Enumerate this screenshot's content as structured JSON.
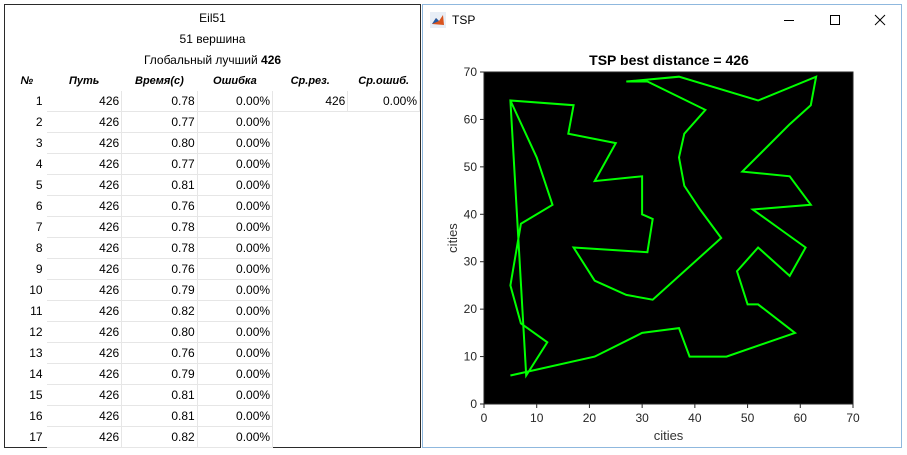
{
  "header": {
    "instance": "Eil51",
    "vertices": "51 вершина",
    "global_best_label": "Глобальный лучший",
    "global_best_value": "426"
  },
  "table": {
    "columns": [
      "№",
      "Путь",
      "Время(с)",
      "Ошибка",
      "Ср.рез.",
      "Ср.ошиб."
    ],
    "rows": [
      {
        "n": "1",
        "path": "426",
        "time": "0.78",
        "err": "0.00%",
        "avg": "426",
        "avgerr": "0.00%"
      },
      {
        "n": "2",
        "path": "426",
        "time": "0.77",
        "err": "0.00%"
      },
      {
        "n": "3",
        "path": "426",
        "time": "0.80",
        "err": "0.00%"
      },
      {
        "n": "4",
        "path": "426",
        "time": "0.77",
        "err": "0.00%"
      },
      {
        "n": "5",
        "path": "426",
        "time": "0.81",
        "err": "0.00%"
      },
      {
        "n": "6",
        "path": "426",
        "time": "0.76",
        "err": "0.00%"
      },
      {
        "n": "7",
        "path": "426",
        "time": "0.78",
        "err": "0.00%"
      },
      {
        "n": "8",
        "path": "426",
        "time": "0.78",
        "err": "0.00%"
      },
      {
        "n": "9",
        "path": "426",
        "time": "0.76",
        "err": "0.00%"
      },
      {
        "n": "10",
        "path": "426",
        "time": "0.79",
        "err": "0.00%"
      },
      {
        "n": "11",
        "path": "426",
        "time": "0.82",
        "err": "0.00%"
      },
      {
        "n": "12",
        "path": "426",
        "time": "0.80",
        "err": "0.00%"
      },
      {
        "n": "13",
        "path": "426",
        "time": "0.76",
        "err": "0.00%"
      },
      {
        "n": "14",
        "path": "426",
        "time": "0.79",
        "err": "0.00%"
      },
      {
        "n": "15",
        "path": "426",
        "time": "0.81",
        "err": "0.00%"
      },
      {
        "n": "16",
        "path": "426",
        "time": "0.81",
        "err": "0.00%"
      },
      {
        "n": "17",
        "path": "426",
        "time": "0.82",
        "err": "0.00%"
      }
    ]
  },
  "window": {
    "title": "TSP",
    "icon": "matlab-figure-icon",
    "buttons": [
      "minimize-icon",
      "maximize-icon",
      "close-icon"
    ]
  },
  "chart_data": {
    "type": "line",
    "title": "TSP best distance = 426",
    "xlabel": "cities",
    "ylabel": "cities",
    "xlim": [
      0,
      70
    ],
    "ylim": [
      0,
      70
    ],
    "xticks": [
      0,
      10,
      20,
      30,
      40,
      50,
      60,
      70
    ],
    "yticks": [
      0,
      10,
      20,
      30,
      40,
      50,
      60,
      70
    ],
    "background": "#000000",
    "line_color": "#00ff00",
    "series": [
      {
        "x": [
          5,
          10,
          13,
          7,
          5,
          7,
          12,
          8,
          5,
          17,
          16,
          25,
          21,
          30,
          30,
          32,
          31,
          17,
          21,
          27,
          32,
          45,
          41,
          38,
          37,
          38,
          42,
          31,
          27,
          37,
          52,
          63,
          62,
          58,
          49,
          58,
          62,
          51,
          56,
          61,
          58,
          52,
          48,
          50,
          52,
          59,
          46,
          39,
          37,
          30,
          21,
          5
        ],
        "y": [
          64,
          52,
          42,
          38,
          25,
          17,
          13,
          6,
          64,
          63,
          57,
          55,
          47,
          48,
          40,
          39,
          32,
          33,
          26,
          23,
          22,
          35,
          41,
          46,
          52,
          57,
          62,
          68,
          68,
          69,
          64,
          69,
          63,
          59,
          49,
          48,
          42,
          41,
          37,
          33,
          27,
          33,
          28,
          21,
          21,
          15,
          10,
          10,
          16,
          15,
          10,
          6
        ]
      }
    ]
  }
}
